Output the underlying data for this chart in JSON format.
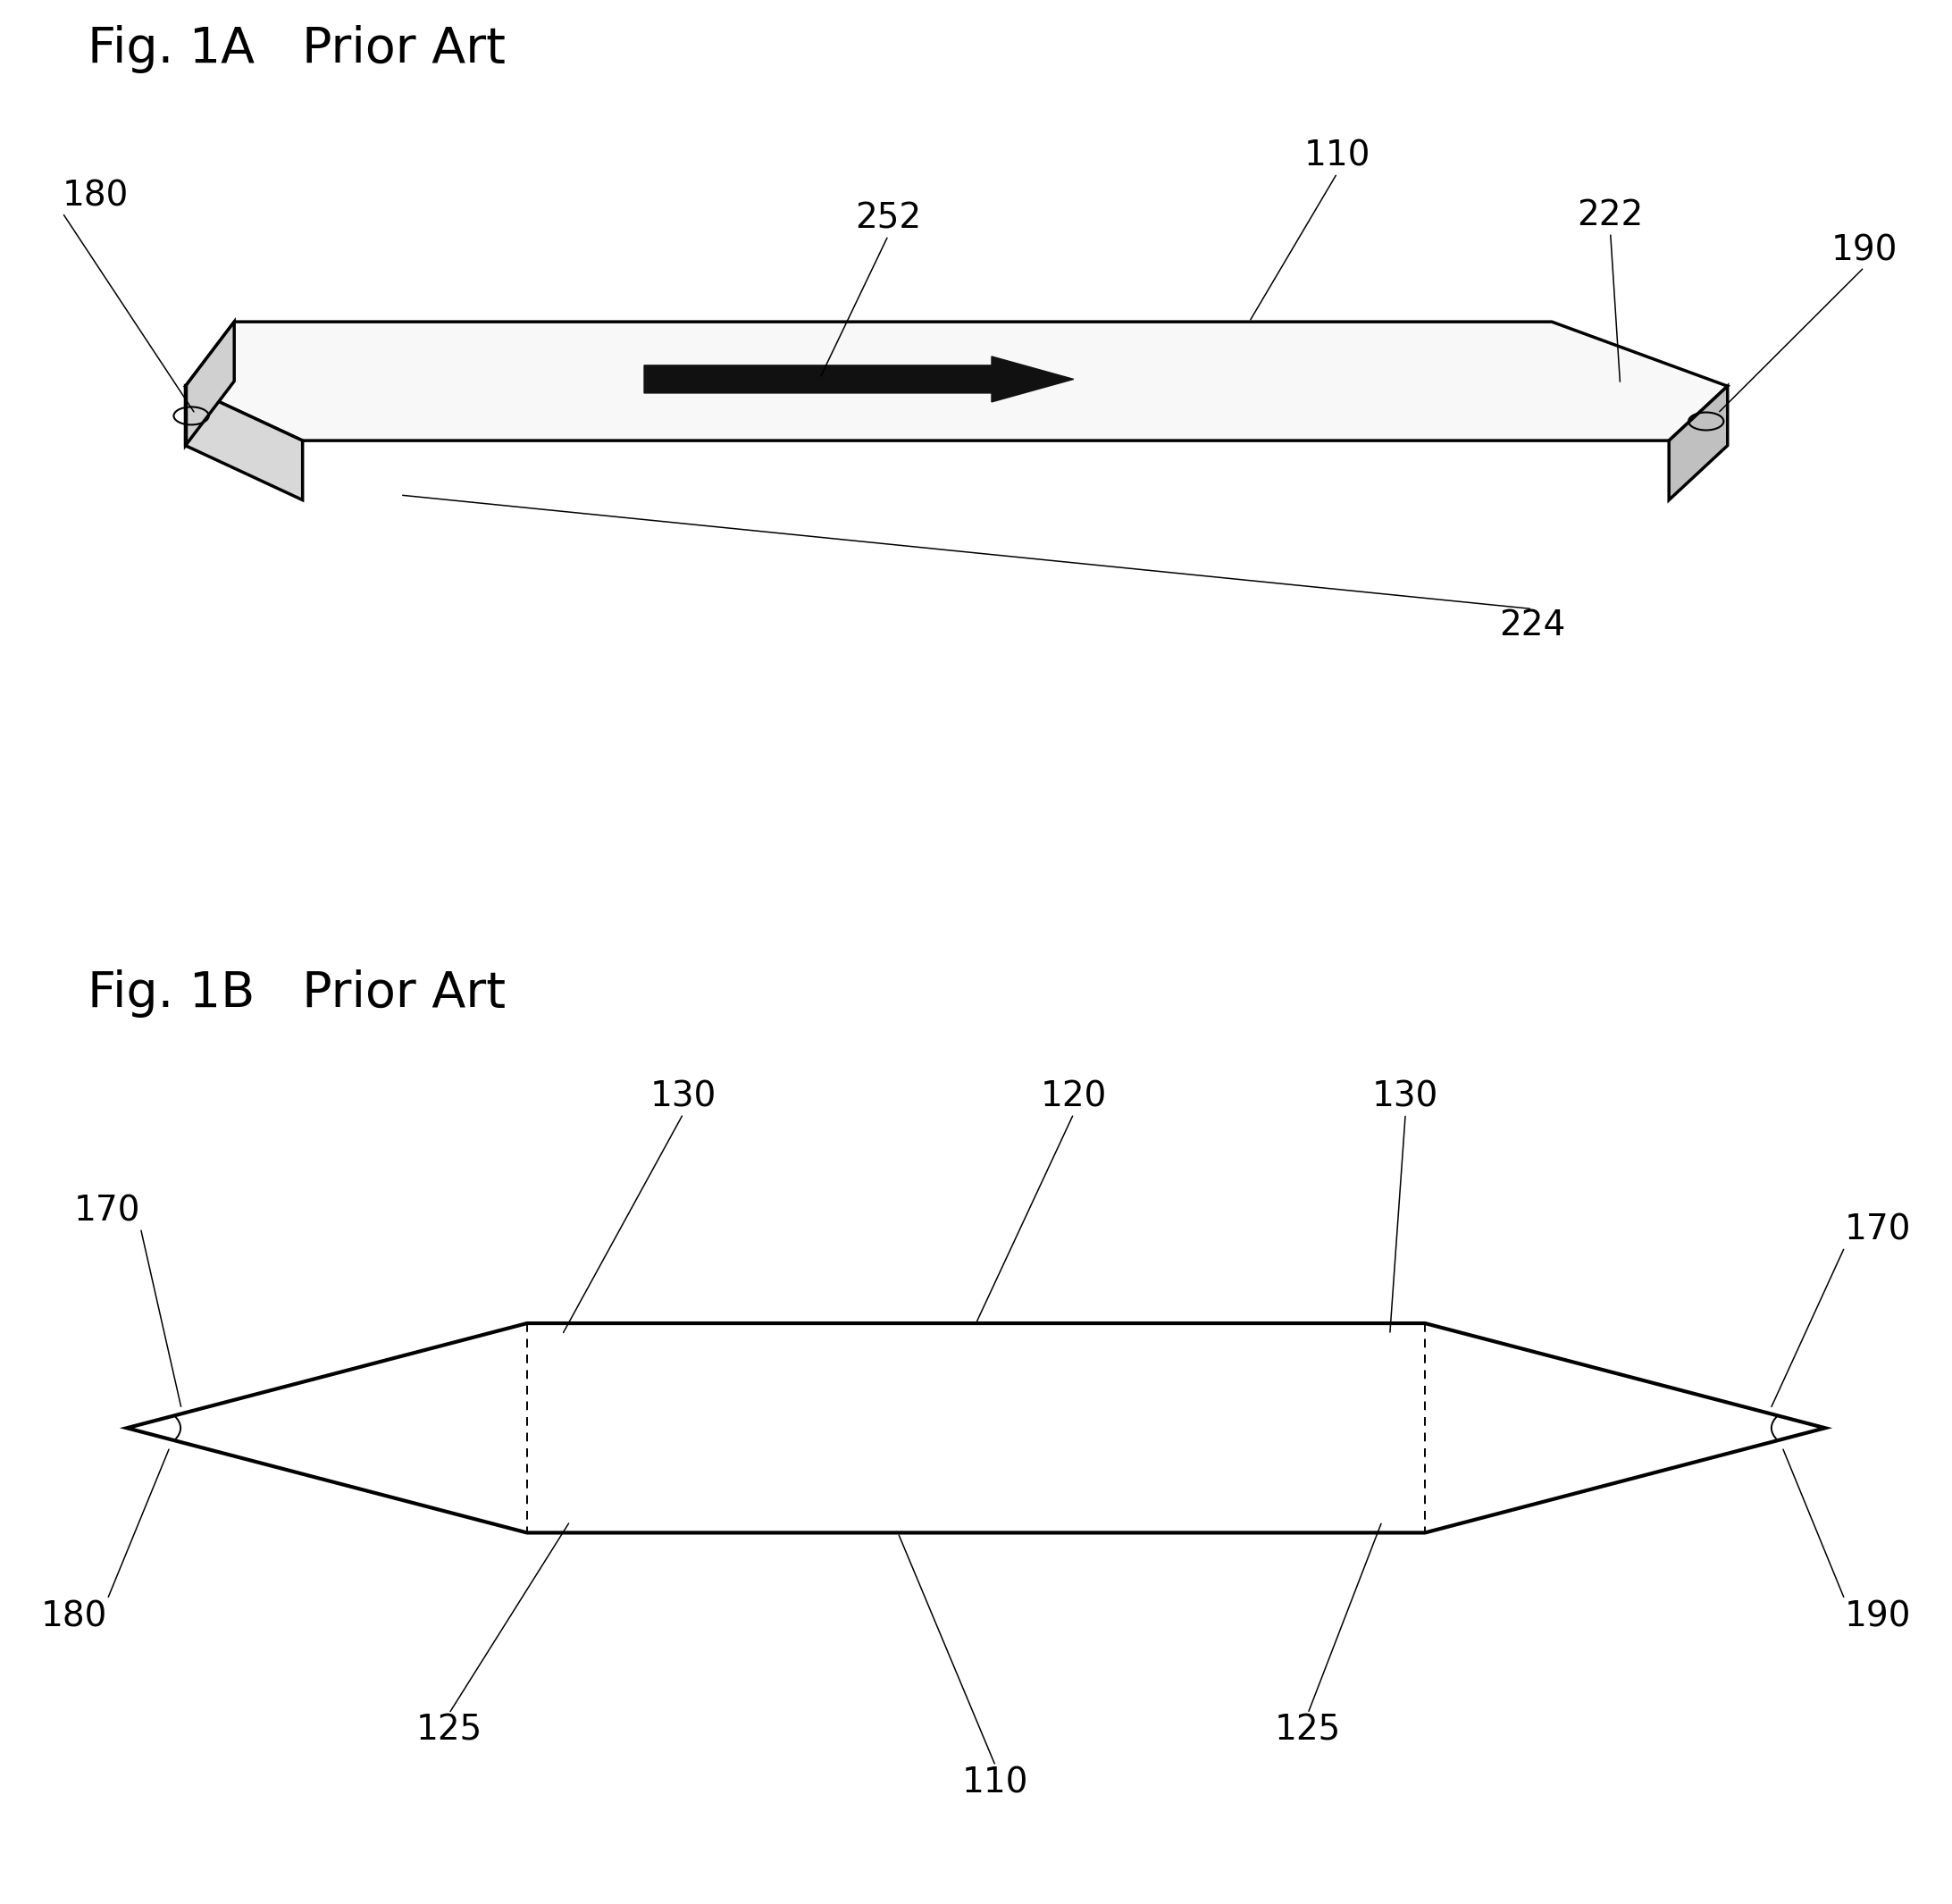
{
  "fig_title_1a": "Fig. 1A   Prior Art",
  "fig_title_1b": "Fig. 1B   Prior Art",
  "bg_color": "#ffffff",
  "line_color": "#000000",
  "label_fontsize": 28,
  "title_fontsize": 40,
  "fig1a": {
    "label_180": "180",
    "label_252": "252",
    "label_110": "110",
    "label_222": "222",
    "label_190": "190",
    "label_224": "224"
  },
  "fig1b": {
    "label_130a": "130",
    "label_120": "120",
    "label_130b": "130",
    "label_170a": "170",
    "label_170b": "170",
    "label_180": "180",
    "label_125a": "125",
    "label_110": "110",
    "label_125b": "125",
    "label_190": "190"
  }
}
